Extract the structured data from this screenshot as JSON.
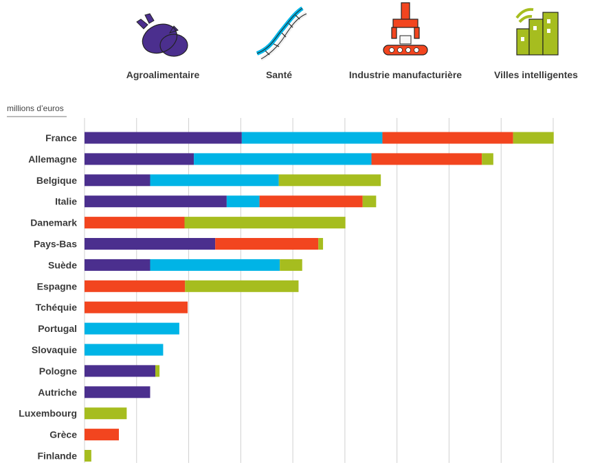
{
  "colors": {
    "agro": "#4b2f8e",
    "sante": "#00b4e6",
    "industrie": "#f2451f",
    "villes": "#a6bd1f",
    "grid": "#cfcfcf",
    "text": "#3a3a3a"
  },
  "icons": [
    "pig-icon",
    "dna-icon",
    "robot-arm-conveyor-icon",
    "smart-city-buildings-icon"
  ],
  "chart_data": {
    "type": "bar",
    "orientation": "horizontal",
    "stacked": true,
    "title": "",
    "unit_label": "millions d’euros",
    "xlabel": "",
    "ylabel": "",
    "grid": true,
    "legend_position": "top",
    "categories": [
      "France",
      "Allemagne",
      "Belgique",
      "Italie",
      "Danemark",
      "Pays-Bas",
      "Suède",
      "Espagne",
      "Tchéquie",
      "Portugal",
      "Slovaquie",
      "Pologne",
      "Autriche",
      "Luxembourg",
      "Grèce",
      "Finlande"
    ],
    "series": [
      {
        "name": "Agroalimentaire",
        "color_key": "agro",
        "values": [
          30.2,
          21.0,
          12.6,
          27.3,
          0,
          25.1,
          12.6,
          0,
          0,
          0,
          0,
          13.6,
          12.6,
          0,
          0,
          0
        ]
      },
      {
        "name": "Santé",
        "color_key": "sante",
        "values": [
          27.0,
          34.1,
          24.7,
          6.3,
          0,
          0,
          24.9,
          0,
          0,
          18.2,
          15.1,
          0,
          0,
          0,
          0,
          0
        ]
      },
      {
        "name": "Industrie manufacturière",
        "color_key": "industrie",
        "values": [
          25.1,
          21.2,
          0,
          19.8,
          19.2,
          19.8,
          0,
          19.3,
          19.8,
          0,
          0,
          0,
          0,
          0,
          6.6,
          0
        ]
      },
      {
        "name": "Villes intelligentes",
        "color_key": "villes",
        "values": [
          7.8,
          2.2,
          19.6,
          2.6,
          30.9,
          0.9,
          4.3,
          21.8,
          0,
          0,
          0,
          0.8,
          0,
          8.1,
          0,
          1.3
        ]
      }
    ],
    "xlim": [
      0,
      90
    ]
  }
}
